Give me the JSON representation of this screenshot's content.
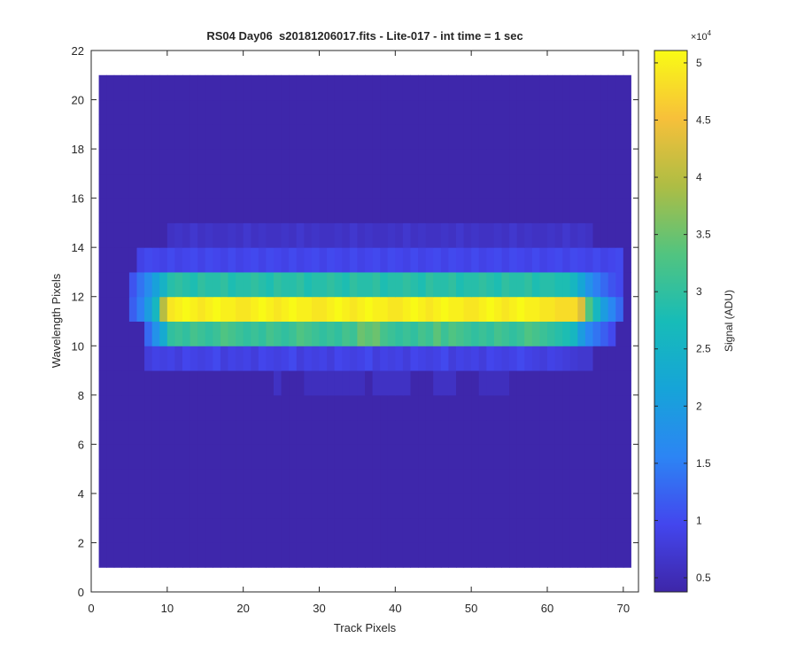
{
  "chart_data": {
    "type": "heatmap",
    "title": "RS04 Day06  s20181206017.fits - Lite-017 - int time = 1 sec",
    "x_label": "Track Pixels",
    "y_label": "Wavelength Pixels",
    "colorbar_label": "Signal (ADU)",
    "colorbar_multiplier": {
      "base": "×10",
      "exponent": "4"
    },
    "xlim": [
      0,
      72
    ],
    "xticks": [
      0,
      10,
      20,
      30,
      40,
      50,
      60,
      70
    ],
    "ylim": [
      0,
      22
    ],
    "yticks": [
      0,
      2,
      4,
      6,
      8,
      10,
      12,
      14,
      16,
      18,
      20,
      22
    ],
    "x_extent": [
      1,
      71
    ],
    "y_extent": [
      1,
      21
    ],
    "clim": [
      0.376,
      5.108
    ],
    "cticks": [
      0.5,
      1,
      1.5,
      2,
      2.5,
      3,
      3.5,
      4,
      4.5,
      5
    ],
    "colormap": [
      "#3e26a8",
      "#4346ee",
      "#2c85f4",
      "#16a4d8",
      "#17bcb8",
      "#52c47f",
      "#aebd44",
      "#f7c03a",
      "#f9fb15"
    ],
    "z": [
      [
        0.4,
        0.4,
        0.4,
        0.4,
        0.4,
        0.4,
        0.4,
        0.4,
        0.4,
        0.4,
        0.4,
        0.4,
        0.4,
        0.4,
        0.4,
        0.4,
        0.4,
        0.4,
        0.4,
        0.4,
        0.4,
        0.4,
        0.4,
        0.4,
        0.4,
        0.4,
        0.4,
        0.4,
        0.4,
        0.4,
        0.4,
        0.4,
        0.4,
        0.4,
        0.4,
        0.4,
        0.4,
        0.4,
        0.4,
        0.4,
        0.4,
        0.4,
        0.4,
        0.4,
        0.4,
        0.4,
        0.4,
        0.4,
        0.4,
        0.4,
        0.4,
        0.4,
        0.4,
        0.4,
        0.4,
        0.4,
        0.4,
        0.4,
        0.4,
        0.4,
        0.4,
        0.4,
        0.4,
        0.4,
        0.4,
        0.4,
        0.4,
        0.4,
        0.4,
        0.4
      ],
      [
        0.4,
        0.4,
        0.4,
        0.4,
        0.4,
        0.4,
        0.4,
        0.4,
        0.4,
        0.4,
        0.4,
        0.4,
        0.4,
        0.4,
        0.4,
        0.4,
        0.4,
        0.4,
        0.4,
        0.4,
        0.4,
        0.4,
        0.4,
        0.4,
        0.4,
        0.4,
        0.4,
        0.4,
        0.4,
        0.4,
        0.4,
        0.4,
        0.4,
        0.4,
        0.4,
        0.4,
        0.4,
        0.4,
        0.4,
        0.4,
        0.4,
        0.4,
        0.4,
        0.4,
        0.4,
        0.4,
        0.4,
        0.4,
        0.4,
        0.4,
        0.4,
        0.4,
        0.4,
        0.4,
        0.4,
        0.4,
        0.4,
        0.4,
        0.4,
        0.4,
        0.4,
        0.4,
        0.4,
        0.4,
        0.4,
        0.4,
        0.4,
        0.4,
        0.4,
        0.4
      ],
      [
        0.4,
        0.4,
        0.4,
        0.4,
        0.4,
        0.4,
        0.4,
        0.4,
        0.4,
        0.4,
        0.4,
        0.4,
        0.4,
        0.4,
        0.4,
        0.4,
        0.4,
        0.4,
        0.4,
        0.4,
        0.4,
        0.4,
        0.4,
        0.4,
        0.4,
        0.4,
        0.4,
        0.4,
        0.4,
        0.4,
        0.4,
        0.4,
        0.4,
        0.4,
        0.4,
        0.4,
        0.4,
        0.4,
        0.4,
        0.4,
        0.4,
        0.4,
        0.4,
        0.4,
        0.4,
        0.4,
        0.4,
        0.4,
        0.4,
        0.4,
        0.4,
        0.4,
        0.4,
        0.4,
        0.4,
        0.4,
        0.4,
        0.4,
        0.4,
        0.4,
        0.4,
        0.4,
        0.4,
        0.4,
        0.4,
        0.4,
        0.4,
        0.4,
        0.4,
        0.4
      ],
      [
        0.4,
        0.4,
        0.4,
        0.4,
        0.4,
        0.4,
        0.4,
        0.4,
        0.4,
        0.4,
        0.4,
        0.4,
        0.4,
        0.4,
        0.4,
        0.4,
        0.4,
        0.4,
        0.4,
        0.4,
        0.4,
        0.4,
        0.4,
        0.4,
        0.4,
        0.4,
        0.4,
        0.4,
        0.4,
        0.4,
        0.4,
        0.4,
        0.4,
        0.4,
        0.4,
        0.4,
        0.4,
        0.4,
        0.4,
        0.4,
        0.4,
        0.4,
        0.4,
        0.4,
        0.4,
        0.4,
        0.4,
        0.4,
        0.4,
        0.4,
        0.4,
        0.4,
        0.4,
        0.4,
        0.4,
        0.4,
        0.4,
        0.4,
        0.4,
        0.4,
        0.4,
        0.4,
        0.4,
        0.4,
        0.4,
        0.4,
        0.4,
        0.4,
        0.4,
        0.4
      ],
      [
        0.4,
        0.4,
        0.4,
        0.4,
        0.4,
        0.4,
        0.4,
        0.4,
        0.4,
        0.4,
        0.4,
        0.4,
        0.4,
        0.4,
        0.4,
        0.4,
        0.4,
        0.4,
        0.4,
        0.4,
        0.4,
        0.4,
        0.4,
        0.4,
        0.4,
        0.4,
        0.4,
        0.4,
        0.4,
        0.4,
        0.4,
        0.4,
        0.4,
        0.4,
        0.4,
        0.4,
        0.4,
        0.4,
        0.4,
        0.4,
        0.4,
        0.4,
        0.4,
        0.4,
        0.4,
        0.4,
        0.4,
        0.4,
        0.4,
        0.4,
        0.4,
        0.4,
        0.4,
        0.4,
        0.4,
        0.4,
        0.4,
        0.4,
        0.4,
        0.4,
        0.4,
        0.4,
        0.4,
        0.4,
        0.4,
        0.4,
        0.4,
        0.4,
        0.4,
        0.4
      ],
      [
        0.4,
        0.4,
        0.4,
        0.4,
        0.4,
        0.4,
        0.4,
        0.4,
        0.4,
        0.4,
        0.4,
        0.4,
        0.4,
        0.4,
        0.4,
        0.4,
        0.4,
        0.4,
        0.4,
        0.4,
        0.4,
        0.4,
        0.4,
        0.4,
        0.4,
        0.4,
        0.4,
        0.4,
        0.4,
        0.4,
        0.4,
        0.4,
        0.4,
        0.4,
        0.4,
        0.4,
        0.4,
        0.4,
        0.4,
        0.4,
        0.4,
        0.4,
        0.4,
        0.4,
        0.4,
        0.4,
        0.4,
        0.4,
        0.4,
        0.4,
        0.4,
        0.4,
        0.4,
        0.4,
        0.4,
        0.4,
        0.4,
        0.4,
        0.4,
        0.4,
        0.4,
        0.4,
        0.4,
        0.4,
        0.4,
        0.4,
        0.4,
        0.4,
        0.4,
        0.4
      ],
      [
        0.4,
        0.4,
        0.4,
        0.4,
        0.4,
        0.4,
        0.4,
        0.4,
        0.4,
        0.4,
        0.4,
        0.4,
        0.4,
        0.4,
        0.4,
        0.4,
        0.4,
        0.4,
        0.4,
        0.4,
        0.4,
        0.4,
        0.4,
        0.4,
        0.4,
        0.4,
        0.4,
        0.4,
        0.4,
        0.4,
        0.4,
        0.4,
        0.4,
        0.4,
        0.4,
        0.4,
        0.4,
        0.4,
        0.4,
        0.4,
        0.4,
        0.4,
        0.4,
        0.4,
        0.4,
        0.4,
        0.4,
        0.4,
        0.4,
        0.4,
        0.4,
        0.4,
        0.4,
        0.4,
        0.4,
        0.4,
        0.4,
        0.4,
        0.4,
        0.4,
        0.4,
        0.4,
        0.4,
        0.4,
        0.4,
        0.4,
        0.4,
        0.4,
        0.4,
        0.4
      ],
      [
        0.4,
        0.4,
        0.4,
        0.4,
        0.4,
        0.4,
        0.4,
        0.4,
        0.4,
        0.4,
        0.4,
        0.4,
        0.4,
        0.4,
        0.4,
        0.4,
        0.4,
        0.4,
        0.4,
        0.4,
        0.4,
        0.4,
        0.4,
        0.6,
        0.4,
        0.4,
        0.4,
        0.55,
        0.55,
        0.55,
        0.55,
        0.55,
        0.55,
        0.55,
        0.55,
        0.4,
        0.6,
        0.6,
        0.6,
        0.6,
        0.6,
        0.4,
        0.4,
        0.4,
        0.6,
        0.6,
        0.6,
        0.4,
        0.4,
        0.4,
        0.55,
        0.55,
        0.55,
        0.55,
        0.4,
        0.4,
        0.4,
        0.4,
        0.4,
        0.4,
        0.4,
        0.4,
        0.4,
        0.4,
        0.4,
        0.4,
        0.4,
        0.4,
        0.4,
        0.4
      ],
      [
        0.4,
        0.4,
        0.4,
        0.4,
        0.4,
        0.4,
        0.8,
        0.9,
        0.85,
        0.9,
        0.8,
        0.95,
        0.9,
        0.85,
        0.9,
        1.0,
        0.8,
        0.9,
        0.85,
        0.9,
        0.8,
        0.95,
        0.9,
        0.85,
        0.9,
        1.0,
        0.8,
        0.9,
        0.85,
        0.9,
        0.8,
        0.95,
        0.9,
        0.85,
        0.9,
        1.0,
        0.8,
        0.9,
        0.85,
        0.9,
        0.8,
        0.95,
        0.9,
        0.85,
        0.9,
        1.0,
        0.8,
        0.9,
        0.85,
        0.9,
        0.8,
        0.95,
        0.9,
        0.85,
        0.9,
        1.0,
        0.9,
        0.85,
        0.8,
        0.9,
        0.85,
        0.8,
        0.75,
        0.7,
        0.7,
        0.4,
        0.4,
        0.4,
        0.4,
        0.4
      ],
      [
        0.4,
        0.4,
        0.4,
        0.4,
        0.4,
        0.4,
        1.3,
        1.8,
        2.3,
        3.0,
        3.1,
        3.0,
        3.2,
        3.1,
        3.0,
        3.1,
        3.3,
        3.2,
        3.1,
        3.0,
        3.1,
        3.0,
        3.2,
        3.1,
        3.0,
        3.1,
        3.3,
        3.2,
        3.1,
        3.0,
        3.1,
        3.0,
        3.2,
        3.1,
        3.5,
        3.4,
        3.5,
        3.2,
        3.1,
        3.0,
        3.1,
        3.0,
        3.2,
        3.1,
        3.4,
        3.1,
        3.3,
        3.2,
        3.1,
        3.0,
        3.1,
        3.0,
        3.2,
        3.1,
        3.0,
        3.1,
        3.3,
        3.2,
        3.1,
        3.0,
        2.9,
        2.8,
        2.6,
        2.0,
        1.6,
        1.4,
        1.2,
        1.0,
        0.4,
        0.4
      ],
      [
        0.4,
        0.4,
        0.4,
        0.4,
        1.2,
        1.5,
        2.0,
        2.6,
        4.0,
        4.9,
        5.0,
        5.1,
        5.0,
        4.9,
        5.0,
        5.1,
        5.0,
        5.0,
        4.9,
        4.9,
        5.0,
        5.1,
        5.0,
        4.9,
        5.0,
        5.1,
        5.0,
        5.0,
        4.9,
        4.9,
        5.0,
        5.1,
        5.0,
        4.9,
        5.0,
        5.1,
        5.0,
        5.0,
        4.9,
        4.9,
        5.0,
        5.1,
        5.0,
        4.9,
        5.0,
        5.1,
        5.0,
        5.0,
        4.9,
        4.9,
        5.0,
        5.1,
        5.0,
        4.9,
        5.0,
        5.1,
        5.0,
        5.0,
        4.9,
        4.9,
        4.8,
        4.8,
        4.8,
        4.3,
        3.3,
        2.6,
        2.0,
        1.6,
        1.3,
        0.4
      ],
      [
        0.4,
        0.4,
        0.4,
        0.4,
        1.1,
        1.4,
        1.7,
        2.1,
        2.5,
        2.9,
        3.0,
        2.9,
        2.8,
        3.0,
        2.9,
        2.9,
        3.0,
        2.8,
        2.9,
        2.9,
        3.0,
        2.9,
        2.8,
        3.0,
        2.9,
        2.9,
        3.0,
        2.8,
        2.9,
        2.9,
        3.0,
        2.9,
        2.8,
        3.0,
        2.9,
        2.9,
        3.0,
        2.8,
        2.9,
        2.9,
        3.0,
        2.9,
        2.8,
        3.0,
        2.9,
        2.9,
        3.0,
        2.8,
        2.9,
        2.9,
        3.0,
        2.9,
        2.8,
        3.0,
        2.9,
        2.9,
        3.0,
        2.8,
        2.9,
        2.9,
        2.8,
        2.8,
        2.6,
        2.2,
        1.8,
        1.5,
        1.3,
        1.1,
        1.0,
        0.4
      ],
      [
        0.4,
        0.4,
        0.4,
        0.4,
        0.4,
        0.9,
        1.0,
        0.95,
        0.9,
        1.0,
        0.9,
        0.95,
        1.0,
        0.9,
        1.0,
        0.95,
        0.9,
        1.0,
        0.9,
        0.95,
        1.0,
        0.9,
        1.0,
        0.95,
        0.9,
        1.0,
        0.9,
        0.95,
        1.0,
        0.9,
        1.0,
        0.95,
        0.9,
        1.0,
        0.9,
        0.95,
        1.0,
        0.9,
        1.0,
        0.95,
        0.9,
        1.0,
        0.9,
        0.95,
        1.0,
        0.9,
        1.0,
        0.95,
        0.9,
        1.0,
        0.9,
        0.95,
        1.0,
        0.9,
        1.0,
        0.95,
        0.9,
        1.0,
        0.9,
        0.95,
        1.0,
        0.9,
        1.0,
        0.95,
        0.9,
        1.0,
        0.9,
        0.95,
        1.0,
        0.4
      ],
      [
        0.4,
        0.4,
        0.4,
        0.4,
        0.4,
        0.4,
        0.4,
        0.4,
        0.4,
        0.6,
        0.65,
        0.6,
        0.7,
        0.6,
        0.65,
        0.6,
        0.6,
        0.65,
        0.6,
        0.7,
        0.6,
        0.65,
        0.6,
        0.6,
        0.65,
        0.6,
        0.7,
        0.6,
        0.65,
        0.6,
        0.6,
        0.65,
        0.6,
        0.7,
        0.6,
        0.65,
        0.6,
        0.6,
        0.65,
        0.6,
        0.7,
        0.6,
        0.65,
        0.6,
        0.6,
        0.65,
        0.6,
        0.7,
        0.6,
        0.65,
        0.6,
        0.6,
        0.65,
        0.6,
        0.7,
        0.6,
        0.65,
        0.6,
        0.6,
        0.65,
        0.6,
        0.7,
        0.6,
        0.65,
        0.6,
        0.4,
        0.4,
        0.4,
        0.4,
        0.4
      ],
      [
        0.4,
        0.4,
        0.4,
        0.4,
        0.4,
        0.4,
        0.4,
        0.4,
        0.4,
        0.4,
        0.4,
        0.4,
        0.4,
        0.4,
        0.4,
        0.4,
        0.4,
        0.4,
        0.4,
        0.4,
        0.4,
        0.4,
        0.4,
        0.4,
        0.4,
        0.4,
        0.4,
        0.4,
        0.4,
        0.4,
        0.4,
        0.4,
        0.4,
        0.4,
        0.4,
        0.4,
        0.4,
        0.4,
        0.4,
        0.4,
        0.4,
        0.4,
        0.4,
        0.4,
        0.4,
        0.4,
        0.4,
        0.4,
        0.4,
        0.4,
        0.4,
        0.4,
        0.4,
        0.4,
        0.4,
        0.4,
        0.4,
        0.4,
        0.4,
        0.4,
        0.4,
        0.4,
        0.4,
        0.4,
        0.4,
        0.4,
        0.4,
        0.4,
        0.4,
        0.4
      ],
      [
        0.4,
        0.4,
        0.4,
        0.4,
        0.4,
        0.4,
        0.4,
        0.4,
        0.4,
        0.4,
        0.4,
        0.4,
        0.4,
        0.4,
        0.4,
        0.4,
        0.4,
        0.4,
        0.4,
        0.4,
        0.4,
        0.4,
        0.4,
        0.4,
        0.4,
        0.4,
        0.4,
        0.4,
        0.4,
        0.4,
        0.4,
        0.4,
        0.4,
        0.4,
        0.4,
        0.4,
        0.4,
        0.4,
        0.4,
        0.4,
        0.4,
        0.4,
        0.4,
        0.4,
        0.4,
        0.4,
        0.4,
        0.4,
        0.4,
        0.4,
        0.4,
        0.4,
        0.4,
        0.4,
        0.4,
        0.4,
        0.4,
        0.4,
        0.4,
        0.4,
        0.4,
        0.4,
        0.4,
        0.4,
        0.4,
        0.4,
        0.4,
        0.4,
        0.4,
        0.4
      ],
      [
        0.4,
        0.4,
        0.4,
        0.4,
        0.4,
        0.4,
        0.4,
        0.4,
        0.4,
        0.4,
        0.4,
        0.4,
        0.4,
        0.4,
        0.4,
        0.4,
        0.4,
        0.4,
        0.4,
        0.4,
        0.4,
        0.4,
        0.4,
        0.4,
        0.4,
        0.4,
        0.4,
        0.4,
        0.4,
        0.4,
        0.4,
        0.4,
        0.4,
        0.4,
        0.4,
        0.4,
        0.4,
        0.4,
        0.4,
        0.4,
        0.4,
        0.4,
        0.4,
        0.4,
        0.4,
        0.4,
        0.4,
        0.4,
        0.4,
        0.4,
        0.4,
        0.4,
        0.4,
        0.4,
        0.4,
        0.4,
        0.4,
        0.4,
        0.4,
        0.4,
        0.4,
        0.4,
        0.4,
        0.4,
        0.4,
        0.4,
        0.4,
        0.4,
        0.4,
        0.4
      ],
      [
        0.4,
        0.4,
        0.4,
        0.4,
        0.4,
        0.4,
        0.4,
        0.4,
        0.4,
        0.4,
        0.4,
        0.4,
        0.4,
        0.4,
        0.4,
        0.4,
        0.4,
        0.4,
        0.4,
        0.4,
        0.4,
        0.4,
        0.4,
        0.4,
        0.4,
        0.4,
        0.4,
        0.4,
        0.4,
        0.4,
        0.4,
        0.4,
        0.4,
        0.4,
        0.4,
        0.4,
        0.4,
        0.4,
        0.4,
        0.4,
        0.4,
        0.4,
        0.4,
        0.4,
        0.4,
        0.4,
        0.4,
        0.4,
        0.4,
        0.4,
        0.4,
        0.4,
        0.4,
        0.4,
        0.4,
        0.4,
        0.4,
        0.4,
        0.4,
        0.4,
        0.4,
        0.4,
        0.4,
        0.4,
        0.4,
        0.4,
        0.4,
        0.4,
        0.4,
        0.4
      ],
      [
        0.4,
        0.4,
        0.4,
        0.4,
        0.4,
        0.4,
        0.4,
        0.4,
        0.4,
        0.4,
        0.4,
        0.4,
        0.4,
        0.4,
        0.4,
        0.4,
        0.4,
        0.4,
        0.4,
        0.4,
        0.4,
        0.4,
        0.4,
        0.4,
        0.4,
        0.4,
        0.4,
        0.4,
        0.4,
        0.4,
        0.4,
        0.4,
        0.4,
        0.4,
        0.4,
        0.4,
        0.4,
        0.4,
        0.4,
        0.4,
        0.4,
        0.4,
        0.4,
        0.4,
        0.4,
        0.4,
        0.4,
        0.4,
        0.4,
        0.4,
        0.4,
        0.4,
        0.4,
        0.4,
        0.4,
        0.4,
        0.4,
        0.4,
        0.4,
        0.4,
        0.4,
        0.4,
        0.4,
        0.4,
        0.4,
        0.4,
        0.4,
        0.4,
        0.4,
        0.4
      ],
      [
        0.4,
        0.4,
        0.4,
        0.4,
        0.4,
        0.4,
        0.4,
        0.4,
        0.4,
        0.4,
        0.4,
        0.4,
        0.4,
        0.4,
        0.4,
        0.4,
        0.4,
        0.4,
        0.4,
        0.4,
        0.4,
        0.4,
        0.4,
        0.4,
        0.4,
        0.4,
        0.4,
        0.4,
        0.4,
        0.4,
        0.4,
        0.4,
        0.4,
        0.4,
        0.4,
        0.4,
        0.4,
        0.4,
        0.4,
        0.4,
        0.4,
        0.4,
        0.4,
        0.4,
        0.4,
        0.4,
        0.4,
        0.4,
        0.4,
        0.4,
        0.4,
        0.4,
        0.4,
        0.4,
        0.4,
        0.4,
        0.4,
        0.4,
        0.4,
        0.4,
        0.4,
        0.4,
        0.4,
        0.4,
        0.4,
        0.4,
        0.4,
        0.4,
        0.4,
        0.4
      ]
    ]
  }
}
